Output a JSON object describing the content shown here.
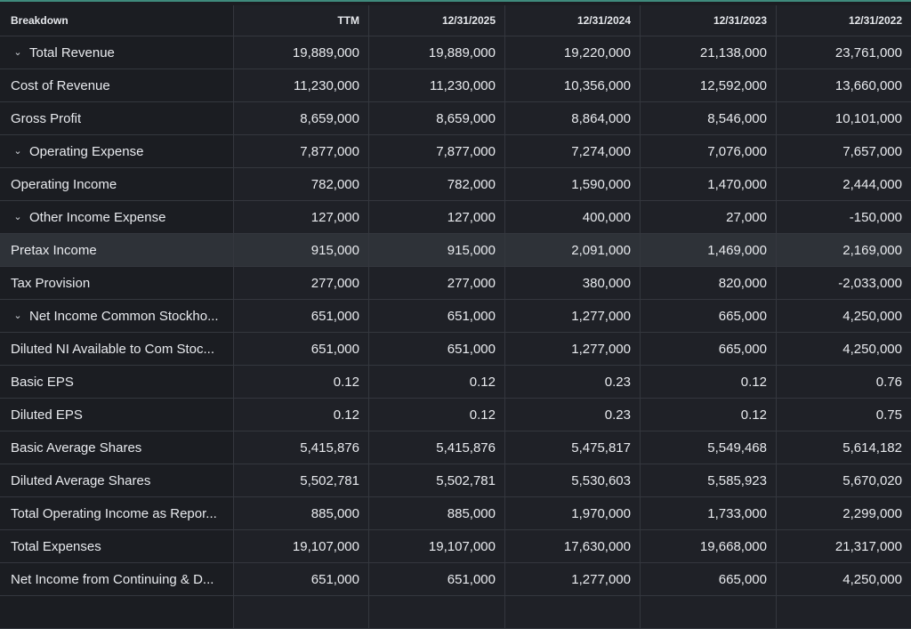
{
  "header": {
    "breakdown": "Breakdown",
    "columns": [
      "TTM",
      "12/31/2025",
      "12/31/2024",
      "12/31/2023",
      "12/31/2022"
    ]
  },
  "rows": [
    {
      "label": "Total Revenue",
      "expandable": true,
      "values": [
        "19,889,000",
        "19,889,000",
        "19,220,000",
        "21,138,000",
        "23,761,000"
      ]
    },
    {
      "label": "Cost of Revenue",
      "expandable": false,
      "values": [
        "11,230,000",
        "11,230,000",
        "10,356,000",
        "12,592,000",
        "13,660,000"
      ]
    },
    {
      "label": "Gross Profit",
      "expandable": false,
      "values": [
        "8,659,000",
        "8,659,000",
        "8,864,000",
        "8,546,000",
        "10,101,000"
      ]
    },
    {
      "label": "Operating Expense",
      "expandable": true,
      "values": [
        "7,877,000",
        "7,877,000",
        "7,274,000",
        "7,076,000",
        "7,657,000"
      ]
    },
    {
      "label": "Operating Income",
      "expandable": false,
      "values": [
        "782,000",
        "782,000",
        "1,590,000",
        "1,470,000",
        "2,444,000"
      ]
    },
    {
      "label": "Other Income Expense",
      "expandable": true,
      "values": [
        "127,000",
        "127,000",
        "400,000",
        "27,000",
        "-150,000"
      ]
    },
    {
      "label": "Pretax Income",
      "expandable": false,
      "highlight": true,
      "values": [
        "915,000",
        "915,000",
        "2,091,000",
        "1,469,000",
        "2,169,000"
      ]
    },
    {
      "label": "Tax Provision",
      "expandable": false,
      "values": [
        "277,000",
        "277,000",
        "380,000",
        "820,000",
        "-2,033,000"
      ]
    },
    {
      "label": "Net Income Common Stockho...",
      "expandable": true,
      "values": [
        "651,000",
        "651,000",
        "1,277,000",
        "665,000",
        "4,250,000"
      ]
    },
    {
      "label": "Diluted NI Available to Com Stoc...",
      "expandable": false,
      "values": [
        "651,000",
        "651,000",
        "1,277,000",
        "665,000",
        "4,250,000"
      ]
    },
    {
      "label": "Basic EPS",
      "expandable": false,
      "values": [
        "0.12",
        "0.12",
        "0.23",
        "0.12",
        "0.76"
      ]
    },
    {
      "label": "Diluted EPS",
      "expandable": false,
      "values": [
        "0.12",
        "0.12",
        "0.23",
        "0.12",
        "0.75"
      ]
    },
    {
      "label": "Basic Average Shares",
      "expandable": false,
      "values": [
        "5,415,876",
        "5,415,876",
        "5,475,817",
        "5,549,468",
        "5,614,182"
      ]
    },
    {
      "label": "Diluted Average Shares",
      "expandable": false,
      "values": [
        "5,502,781",
        "5,502,781",
        "5,530,603",
        "5,585,923",
        "5,670,020"
      ]
    },
    {
      "label": "Total Operating Income as Repor...",
      "expandable": false,
      "values": [
        "885,000",
        "885,000",
        "1,970,000",
        "1,733,000",
        "2,299,000"
      ]
    },
    {
      "label": "Total Expenses",
      "expandable": false,
      "values": [
        "19,107,000",
        "19,107,000",
        "17,630,000",
        "19,668,000",
        "21,317,000"
      ]
    },
    {
      "label": "Net Income from Continuing & D...",
      "expandable": false,
      "values": [
        "651,000",
        "651,000",
        "1,277,000",
        "665,000",
        "4,250,000"
      ]
    },
    {
      "label": "",
      "expandable": false,
      "values": [
        "",
        "",
        "",
        "",
        ""
      ]
    }
  ],
  "icons": {
    "expand": "chevron-down-icon"
  },
  "colors": {
    "accent_line": "#3f8a7c",
    "highlight_row": "#2e3238"
  }
}
